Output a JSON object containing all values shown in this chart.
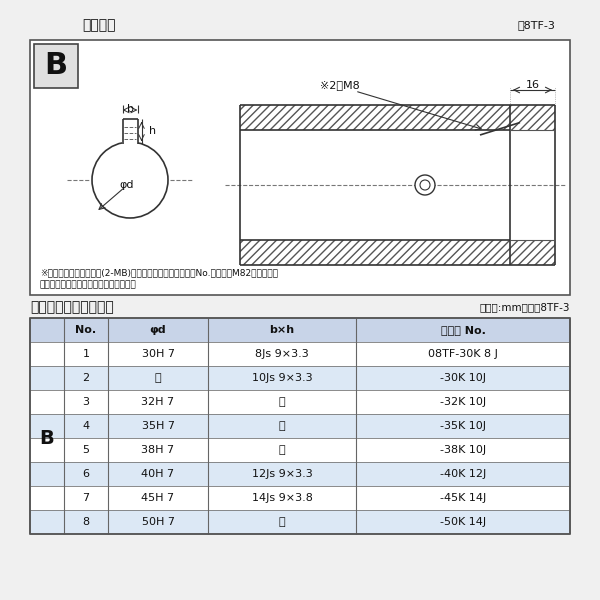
{
  "title_top": "軸穴形状",
  "fig_label_top": "図8TF-3",
  "title_bottom": "軸穴形状コード一覧表",
  "unit_label": "（単位:mm）　表8TF-3",
  "note1": "※セットボルト用タップ(2-MB)が必要な場合は右記コードNo.の末尾にM82を付ける。",
  "note2": "（セットボルトは付属されています。）",
  "bg_color": "#f0f0f0",
  "diagram_bg": "#ffffff",
  "header_row": [
    "No.",
    "φd",
    "b×h",
    "コード No."
  ],
  "rows": [
    [
      "1",
      "30H 7",
      "8Js 9×3.3",
      "08TF-30K 8 J"
    ],
    [
      "2",
      "〃",
      "10Js 9×3.3",
      "-30K 10J"
    ],
    [
      "3",
      "32H 7",
      "〃",
      "-32K 10J"
    ],
    [
      "4",
      "35H 7",
      "〃",
      "-35K 10J"
    ],
    [
      "5",
      "38H 7",
      "〃",
      "-38K 10J"
    ],
    [
      "6",
      "40H 7",
      "12Js 9×3.3",
      "-40K 12J"
    ],
    [
      "7",
      "45H 7",
      "14Js 9×3.8",
      "-45K 14J"
    ],
    [
      "8",
      "50H 7",
      "〃",
      "-50K 14J"
    ]
  ],
  "B_label": "B",
  "diagram_note_x2m8": "※2－M8",
  "diagram_dim_16": "16",
  "diagram_label_b": "b",
  "diagram_label_h": "h",
  "diagram_label_phid": "φd"
}
